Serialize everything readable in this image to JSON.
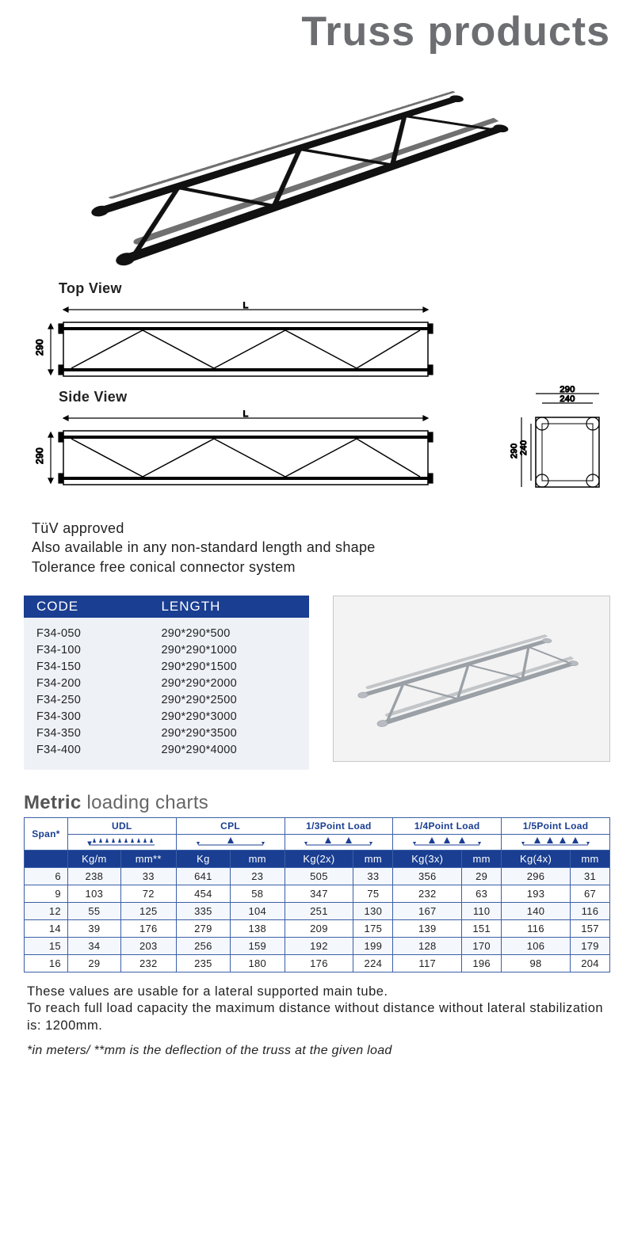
{
  "title": "Truss products",
  "views": {
    "top": "Top View",
    "side": "Side View"
  },
  "dimensions": {
    "outer": "290",
    "inner": "240",
    "lengthLabel": "L"
  },
  "features": [
    "TüV approved",
    "Also available in any non-standard length and shape",
    "Tolerance free conical connector system"
  ],
  "codeTable": {
    "headers": {
      "code": "CODE",
      "length": "LENGTH"
    },
    "rows": [
      {
        "code": "F34-050",
        "length": "290*290*500"
      },
      {
        "code": "F34-100",
        "length": "290*290*1000"
      },
      {
        "code": "F34-150",
        "length": "290*290*1500"
      },
      {
        "code": "F34-200",
        "length": "290*290*2000"
      },
      {
        "code": "F34-250",
        "length": "290*290*2500"
      },
      {
        "code": "F34-300",
        "length": "290*290*3000"
      },
      {
        "code": "F34-350",
        "length": "290*290*3500"
      },
      {
        "code": "F34-400",
        "length": "290*290*4000"
      }
    ]
  },
  "metric": {
    "titleBold": "Metric",
    "titleRest": " loading charts",
    "groups": [
      "Span*",
      "UDL",
      "CPL",
      "1/3Point Load",
      "1/4Point Load",
      "1/5Point Load"
    ],
    "units": [
      "",
      "Kg/m",
      "mm**",
      "Kg",
      "mm",
      "Kg(2x)",
      "mm",
      "Kg(3x)",
      "mm",
      "Kg(4x)",
      "mm"
    ],
    "rows": [
      [
        "6",
        "238",
        "33",
        "641",
        "23",
        "505",
        "33",
        "356",
        "29",
        "296",
        "31"
      ],
      [
        "9",
        "103",
        "72",
        "454",
        "58",
        "347",
        "75",
        "232",
        "63",
        "193",
        "67"
      ],
      [
        "12",
        "55",
        "125",
        "335",
        "104",
        "251",
        "130",
        "167",
        "110",
        "140",
        "116"
      ],
      [
        "14",
        "39",
        "176",
        "279",
        "138",
        "209",
        "175",
        "139",
        "151",
        "116",
        "157"
      ],
      [
        "15",
        "34",
        "203",
        "256",
        "159",
        "192",
        "199",
        "128",
        "170",
        "106",
        "179"
      ],
      [
        "16",
        "29",
        "232",
        "235",
        "180",
        "176",
        "224",
        "117",
        "196",
        "98",
        "204"
      ]
    ]
  },
  "notes": [
    "These values are usable for a lateral supported main tube.",
    "To reach full load capacity the maximum distance without distance without lateral stabilization is: 1200mm."
  ],
  "footnote": "*in meters/ **mm is the deflection of the truss at the given load",
  "colors": {
    "titleGrey": "#6d6e71",
    "brandBlue": "#1a3e91",
    "borderBlue": "#3b5fa6",
    "codeBg": "#eef1f6",
    "stripe": "#f4f7fc"
  }
}
